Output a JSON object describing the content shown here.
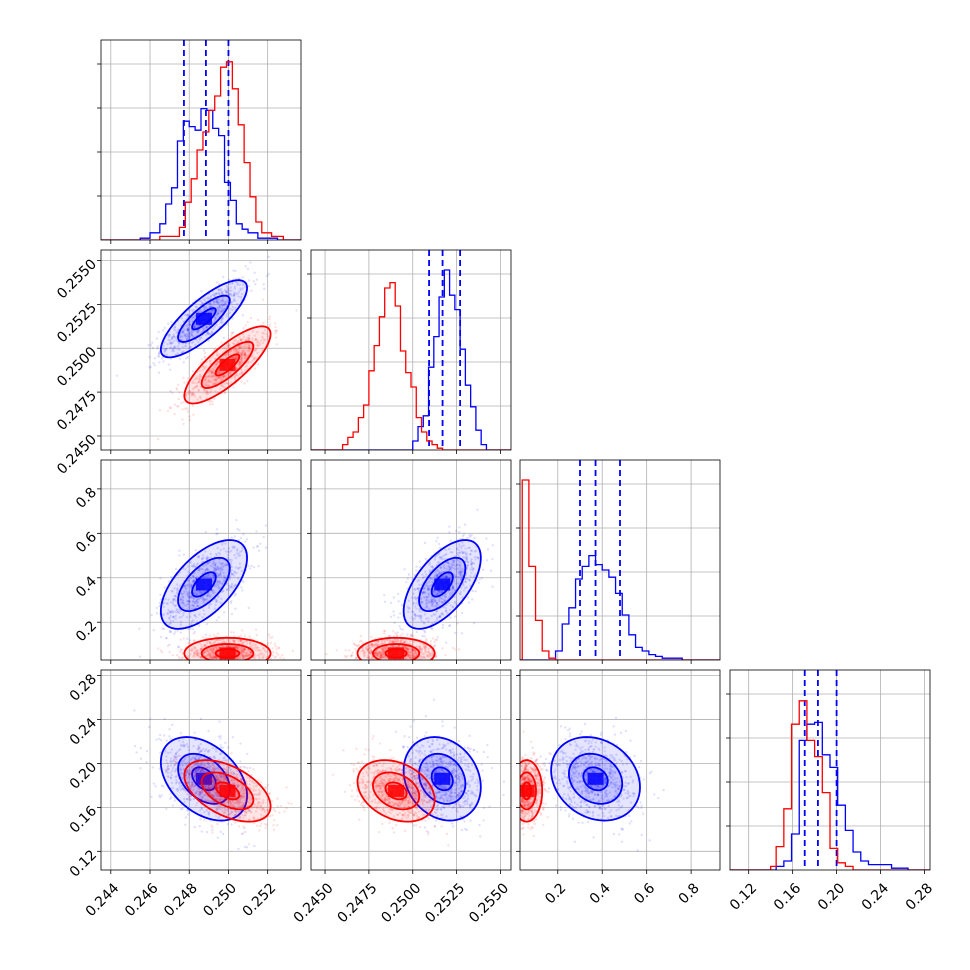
{
  "chart_data": {
    "type": "corner",
    "parameters": [
      {
        "range": [
          0.2435,
          0.2537
        ],
        "ticks": [
          0.244,
          0.246,
          0.248,
          0.25,
          0.252
        ],
        "tick_labels": [
          "0.244",
          "0.246",
          "0.248",
          "0.250",
          "0.252"
        ],
        "hist_ymax": 1.0
      },
      {
        "range": [
          0.2442,
          0.2556
        ],
        "ticks": [
          0.245,
          0.2475,
          0.25,
          0.2525,
          0.255
        ],
        "tick_labels": [
          "0.2450",
          "0.2475",
          "0.2500",
          "0.2525",
          "0.2550"
        ],
        "hist_ymax": 1.0
      },
      {
        "range": [
          0.03,
          0.93
        ],
        "ticks": [
          0.2,
          0.4,
          0.6,
          0.8
        ],
        "tick_labels": [
          "0.2",
          "0.4",
          "0.6",
          "0.8"
        ],
        "hist_ymax": 1.0
      },
      {
        "range": [
          0.103,
          0.285
        ],
        "ticks": [
          0.12,
          0.16,
          0.2,
          0.24,
          0.28
        ],
        "tick_labels": [
          "0.12",
          "0.16",
          "0.20",
          "0.24",
          "0.28"
        ],
        "hist_ymax": 1.0
      }
    ],
    "series": [
      {
        "color": "#0000ff",
        "histograms": [
          {
            "edges": [
              0.2435,
              0.2455,
              0.246,
              0.2465,
              0.2468,
              0.2471,
              0.2474,
              0.2477,
              0.248,
              0.2483,
              0.2486,
              0.2489,
              0.2492,
              0.2495,
              0.2498,
              0.2501,
              0.2504,
              0.2507,
              0.251,
              0.2515,
              0.2525,
              0.2537
            ],
            "values": [
              0.0,
              0.01,
              0.04,
              0.09,
              0.2,
              0.29,
              0.55,
              0.66,
              0.63,
              0.61,
              0.73,
              0.72,
              0.62,
              0.58,
              0.32,
              0.22,
              0.09,
              0.06,
              0.04,
              0.01,
              0.0
            ]
          },
          {
            "edges": [
              0.2442,
              0.25,
              0.2503,
              0.2506,
              0.2509,
              0.2512,
              0.2515,
              0.2518,
              0.2521,
              0.2524,
              0.2527,
              0.253,
              0.2533,
              0.2536,
              0.2539,
              0.2542,
              0.2556
            ],
            "values": [
              0.0,
              0.05,
              0.13,
              0.19,
              0.46,
              0.63,
              0.85,
              1.0,
              0.86,
              0.78,
              0.56,
              0.36,
              0.24,
              0.11,
              0.03,
              0.0
            ]
          },
          {
            "edges": [
              0.03,
              0.19,
              0.22,
              0.25,
              0.28,
              0.31,
              0.34,
              0.37,
              0.4,
              0.43,
              0.46,
              0.49,
              0.52,
              0.55,
              0.58,
              0.61,
              0.64,
              0.67,
              0.7,
              0.76,
              0.93
            ],
            "values": [
              0.0,
              0.05,
              0.2,
              0.29,
              0.45,
              0.52,
              0.58,
              0.53,
              0.5,
              0.46,
              0.37,
              0.25,
              0.14,
              0.07,
              0.05,
              0.03,
              0.02,
              0.01,
              0.01,
              0.0
            ]
          },
          {
            "edges": [
              0.103,
              0.145,
              0.152,
              0.159,
              0.166,
              0.173,
              0.18,
              0.187,
              0.194,
              0.201,
              0.208,
              0.215,
              0.222,
              0.229,
              0.236,
              0.25,
              0.265,
              0.285
            ],
            "values": [
              0.0,
              0.02,
              0.05,
              0.2,
              0.72,
              0.81,
              0.82,
              0.64,
              0.57,
              0.36,
              0.22,
              0.1,
              0.05,
              0.03,
              0.03,
              0.01,
              0.0
            ]
          }
        ],
        "quantiles": [
          [
            0.24773,
            0.24885,
            0.25
          ],
          [
            0.25093,
            0.2517,
            0.2527
          ],
          [
            0.3,
            0.37,
            0.48
          ],
          [
            0.171,
            0.183,
            0.2
          ]
        ],
        "means": [
          0.24875,
          0.25168,
          0.37,
          0.186
        ],
        "sds": [
          0.0011,
          0.0011,
          0.1,
          0.019
        ],
        "corr": [
          [
            1,
            0.8,
            0.6,
            -0.4
          ],
          [
            0.8,
            1,
            0.6,
            -0.2
          ],
          [
            0.6,
            0.6,
            1,
            -0.2
          ],
          [
            -0.4,
            -0.2,
            -0.2,
            1
          ]
        ]
      },
      {
        "color": "#ff0000",
        "histograms": [
          {
            "edges": [
              0.2435,
              0.2465,
              0.2475,
              0.2478,
              0.2481,
              0.2484,
              0.2487,
              0.249,
              0.2493,
              0.2496,
              0.2499,
              0.2502,
              0.2505,
              0.2508,
              0.2511,
              0.2514,
              0.2517,
              0.2522,
              0.2528,
              0.2537
            ],
            "values": [
              0.0,
              0.02,
              0.07,
              0.21,
              0.34,
              0.5,
              0.6,
              0.72,
              0.8,
              0.96,
              0.99,
              0.84,
              0.64,
              0.43,
              0.24,
              0.1,
              0.04,
              0.02,
              0.0
            ]
          },
          {
            "edges": [
              0.2442,
              0.246,
              0.2463,
              0.2466,
              0.2469,
              0.2472,
              0.2475,
              0.2478,
              0.2481,
              0.2484,
              0.2487,
              0.249,
              0.2493,
              0.2496,
              0.2499,
              0.2502,
              0.2505,
              0.2508,
              0.2511,
              0.2514,
              0.2517,
              0.2556
            ],
            "values": [
              0.0,
              0.03,
              0.07,
              0.1,
              0.18,
              0.25,
              0.44,
              0.58,
              0.74,
              0.9,
              0.93,
              0.8,
              0.55,
              0.43,
              0.35,
              0.18,
              0.1,
              0.05,
              0.03,
              0.01,
              0.0
            ]
          },
          {
            "edges": [
              0.03,
              0.04,
              0.07,
              0.1,
              0.13,
              0.16,
              0.19,
              0.93
            ],
            "values": [
              0.0,
              1.0,
              0.52,
              0.22,
              0.05,
              0.01,
              0.0
            ]
          },
          {
            "edges": [
              0.103,
              0.14,
              0.145,
              0.152,
              0.159,
              0.166,
              0.173,
              0.18,
              0.187,
              0.194,
              0.201,
              0.208,
              0.215,
              0.285
            ],
            "values": [
              0.0,
              0.02,
              0.13,
              0.34,
              0.81,
              0.94,
              0.72,
              0.63,
              0.43,
              0.12,
              0.04,
              0.02,
              0.0
            ]
          }
        ],
        "means": [
          0.24995,
          0.24905,
          0.06,
          0.175
        ],
        "sds": [
          0.0011,
          0.0011,
          0.035,
          0.014
        ],
        "corr": [
          [
            1,
            0.8,
            0,
            -0.5
          ],
          [
            0.8,
            1,
            0,
            -0.3
          ],
          [
            0,
            0,
            1,
            0
          ],
          [
            -0.5,
            -0.3,
            0,
            1
          ]
        ]
      }
    ],
    "grid": true,
    "legend": "none"
  }
}
